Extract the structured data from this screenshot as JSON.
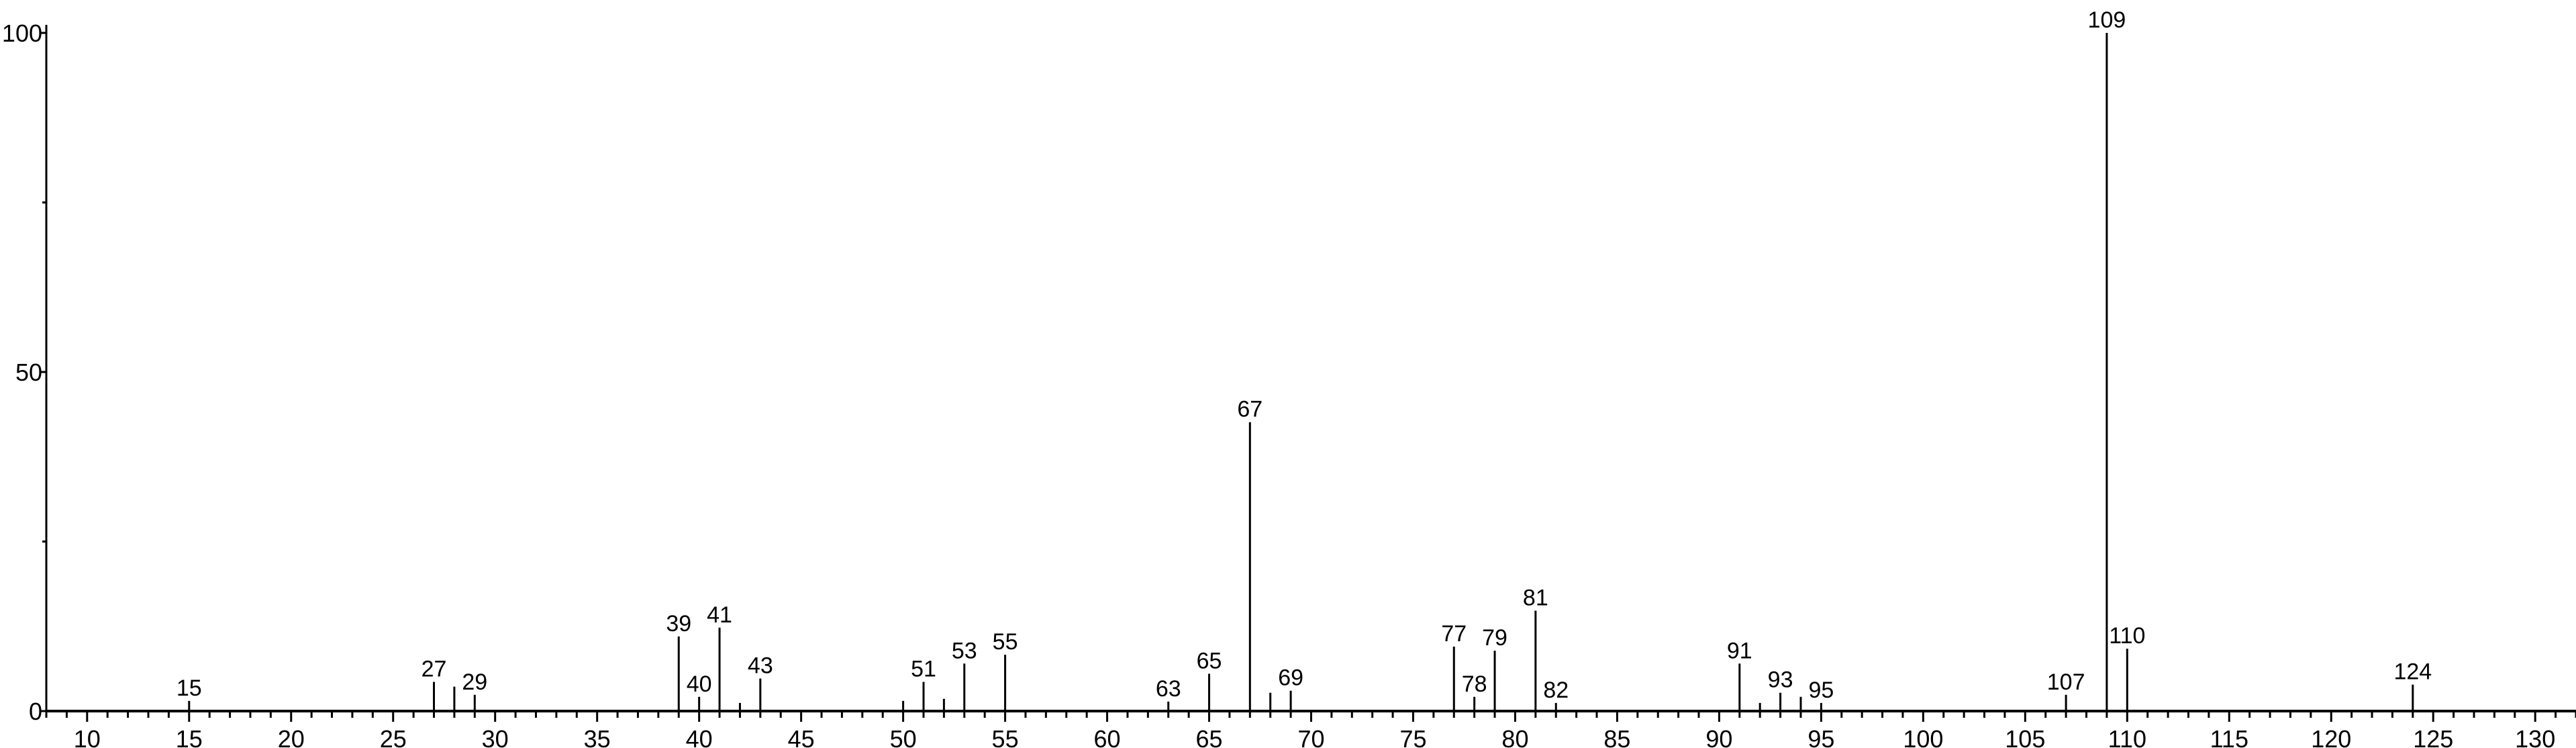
{
  "chart_data": {
    "type": "bar",
    "title": "",
    "xlabel": "",
    "ylabel": "",
    "xlim": [
      8,
      132
    ],
    "ylim": [
      0,
      100
    ],
    "x_major_ticks": [
      10,
      15,
      20,
      25,
      30,
      35,
      40,
      45,
      50,
      55,
      60,
      65,
      70,
      75,
      80,
      85,
      90,
      95,
      100,
      105,
      110,
      115,
      120,
      125,
      130
    ],
    "y_major_ticks": [
      0,
      50,
      100
    ],
    "y_minor_ticks": [
      25,
      75
    ],
    "grid": false,
    "bar_color": "#000000",
    "peaks": [
      {
        "x": 15,
        "y": 1.5,
        "label": "15"
      },
      {
        "x": 27,
        "y": 4.3,
        "label": "27"
      },
      {
        "x": 28,
        "y": 3.6,
        "label": ""
      },
      {
        "x": 29,
        "y": 2.4,
        "label": "29"
      },
      {
        "x": 39,
        "y": 11.0,
        "label": "39"
      },
      {
        "x": 40,
        "y": 2.1,
        "label": "40"
      },
      {
        "x": 41,
        "y": 12.3,
        "label": "41"
      },
      {
        "x": 42,
        "y": 1.2,
        "label": ""
      },
      {
        "x": 43,
        "y": 4.8,
        "label": "43"
      },
      {
        "x": 50,
        "y": 1.5,
        "label": ""
      },
      {
        "x": 51,
        "y": 4.3,
        "label": "51"
      },
      {
        "x": 52,
        "y": 1.8,
        "label": ""
      },
      {
        "x": 53,
        "y": 7.0,
        "label": "53"
      },
      {
        "x": 55,
        "y": 8.3,
        "label": "55"
      },
      {
        "x": 63,
        "y": 1.4,
        "label": "63"
      },
      {
        "x": 65,
        "y": 5.5,
        "label": "65"
      },
      {
        "x": 67,
        "y": 42.6,
        "label": "67"
      },
      {
        "x": 68,
        "y": 2.7,
        "label": ""
      },
      {
        "x": 69,
        "y": 3.0,
        "label": "69"
      },
      {
        "x": 77,
        "y": 9.5,
        "label": "77"
      },
      {
        "x": 78,
        "y": 2.1,
        "label": "78"
      },
      {
        "x": 79,
        "y": 8.9,
        "label": "79"
      },
      {
        "x": 81,
        "y": 14.8,
        "label": "81"
      },
      {
        "x": 82,
        "y": 1.2,
        "label": "82"
      },
      {
        "x": 91,
        "y": 7.0,
        "label": "91"
      },
      {
        "x": 92,
        "y": 1.2,
        "label": ""
      },
      {
        "x": 93,
        "y": 2.7,
        "label": "93"
      },
      {
        "x": 94,
        "y": 2.1,
        "label": ""
      },
      {
        "x": 95,
        "y": 1.2,
        "label": "95"
      },
      {
        "x": 107,
        "y": 2.4,
        "label": "107"
      },
      {
        "x": 109,
        "y": 100,
        "label": "109"
      },
      {
        "x": 110,
        "y": 9.2,
        "label": "110"
      },
      {
        "x": 124,
        "y": 3.9,
        "label": "124"
      }
    ]
  }
}
